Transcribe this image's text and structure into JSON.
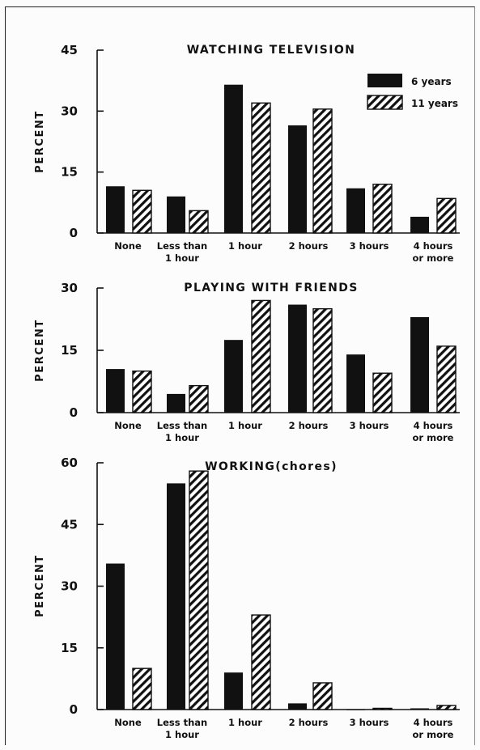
{
  "chart_data": [
    {
      "type": "bar",
      "title": "WATCHING TELEVISION",
      "ylabel": "PERCENT",
      "ylim": [
        0,
        45
      ],
      "yticks": [
        "0",
        "15",
        "30",
        "45"
      ],
      "categories": [
        [
          "None"
        ],
        [
          "Less than",
          "1 hour"
        ],
        [
          "1 hour"
        ],
        [
          "2 hours"
        ],
        [
          "3 hours"
        ],
        [
          "4 hours",
          "or more"
        ]
      ],
      "series": [
        {
          "name": "6 years",
          "values": [
            11.5,
            9,
            36.5,
            26.5,
            11,
            4
          ]
        },
        {
          "name": "11 years",
          "values": [
            10.5,
            5.5,
            32,
            30.5,
            12,
            8.5
          ]
        }
      ],
      "legend": "top-right"
    },
    {
      "type": "bar",
      "title": "PLAYING WITH FRIENDS",
      "ylabel": "PERCENT",
      "ylim": [
        0,
        30
      ],
      "yticks": [
        "0",
        "15",
        "30"
      ],
      "categories": [
        [
          "None"
        ],
        [
          "Less than",
          "1 hour"
        ],
        [
          "1 hour"
        ],
        [
          "2 hours"
        ],
        [
          "3 hours"
        ],
        [
          "4 hours",
          "or more"
        ]
      ],
      "series": [
        {
          "name": "6 years",
          "values": [
            10.5,
            4.5,
            17.5,
            26,
            14,
            23
          ]
        },
        {
          "name": "11 years",
          "values": [
            10,
            6.5,
            27,
            25,
            9.5,
            16
          ]
        }
      ]
    },
    {
      "type": "bar",
      "title": "WORKING(chores)",
      "ylabel": "PERCENT",
      "ylim": [
        0,
        60
      ],
      "yticks": [
        "0",
        "15",
        "30",
        "45",
        "60"
      ],
      "categories": [
        [
          "None"
        ],
        [
          "Less than",
          "1 hour"
        ],
        [
          "1 hour"
        ],
        [
          "2 hours"
        ],
        [
          "3 hours"
        ],
        [
          "4 hours",
          "or more"
        ]
      ],
      "series": [
        {
          "name": "6 years",
          "values": [
            35.5,
            55,
            9,
            1.5,
            0,
            0.3
          ]
        },
        {
          "name": "11 years",
          "values": [
            10,
            58,
            23,
            6.5,
            0.3,
            1
          ]
        }
      ]
    }
  ],
  "colors": {
    "ink": "#111111",
    "paper": "#fcfcfc"
  }
}
